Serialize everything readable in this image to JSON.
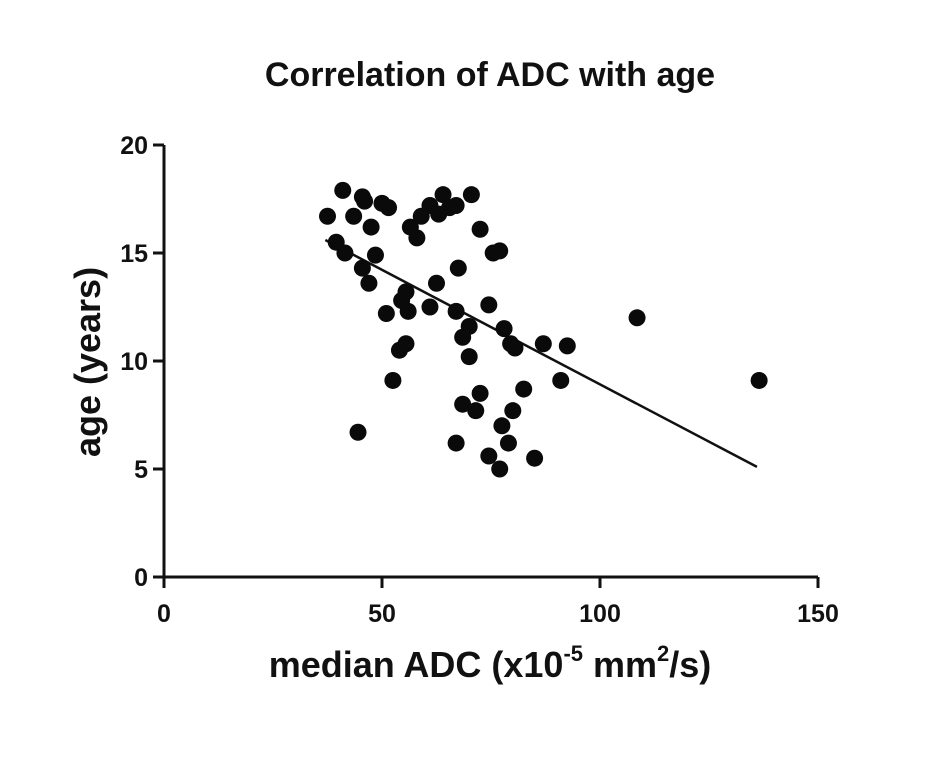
{
  "chart_data": {
    "type": "scatter",
    "title": "Correlation of ADC with age",
    "xlabel_main": "median ADC (x10",
    "xlabel_exp1": "-5",
    "xlabel_mid": " mm",
    "xlabel_exp2": "2",
    "xlabel_tail": "/s)",
    "ylabel": "age (years)",
    "xlim": [
      0,
      150
    ],
    "ylim": [
      0,
      20
    ],
    "x_ticks": [
      "0",
      "50",
      "100",
      "150"
    ],
    "y_ticks": [
      "0",
      "5",
      "10",
      "15",
      "20"
    ],
    "grid": false,
    "trendline": {
      "x": [
        37,
        136
      ],
      "y": [
        15.6,
        5.1
      ]
    },
    "points": [
      {
        "x": 37.5,
        "y": 16.7
      },
      {
        "x": 41,
        "y": 17.9
      },
      {
        "x": 43.5,
        "y": 16.7
      },
      {
        "x": 45.5,
        "y": 17.6
      },
      {
        "x": 46,
        "y": 17.4
      },
      {
        "x": 47.5,
        "y": 16.2
      },
      {
        "x": 50,
        "y": 17.3
      },
      {
        "x": 51.5,
        "y": 17.1
      },
      {
        "x": 39.5,
        "y": 15.5
      },
      {
        "x": 41.5,
        "y": 15.0
      },
      {
        "x": 45.5,
        "y": 14.3
      },
      {
        "x": 47,
        "y": 13.6
      },
      {
        "x": 48.5,
        "y": 14.9
      },
      {
        "x": 51,
        "y": 12.2
      },
      {
        "x": 54.5,
        "y": 12.8
      },
      {
        "x": 55.5,
        "y": 13.2
      },
      {
        "x": 56,
        "y": 12.3
      },
      {
        "x": 54,
        "y": 10.5
      },
      {
        "x": 55.5,
        "y": 10.8
      },
      {
        "x": 52.5,
        "y": 9.1
      },
      {
        "x": 44.5,
        "y": 6.7
      },
      {
        "x": 56.5,
        "y": 16.2
      },
      {
        "x": 58,
        "y": 15.7
      },
      {
        "x": 59,
        "y": 16.7
      },
      {
        "x": 61,
        "y": 17.2
      },
      {
        "x": 63,
        "y": 16.8
      },
      {
        "x": 64,
        "y": 17.7
      },
      {
        "x": 65.5,
        "y": 17.1
      },
      {
        "x": 67,
        "y": 17.2
      },
      {
        "x": 70.5,
        "y": 17.7
      },
      {
        "x": 72.5,
        "y": 16.1
      },
      {
        "x": 75.5,
        "y": 15.0
      },
      {
        "x": 77,
        "y": 15.1
      },
      {
        "x": 61,
        "y": 12.5
      },
      {
        "x": 62.5,
        "y": 13.6
      },
      {
        "x": 67.5,
        "y": 14.3
      },
      {
        "x": 67,
        "y": 12.3
      },
      {
        "x": 68.5,
        "y": 11.1
      },
      {
        "x": 70,
        "y": 11.6
      },
      {
        "x": 70,
        "y": 10.2
      },
      {
        "x": 74.5,
        "y": 12.6
      },
      {
        "x": 78,
        "y": 11.5
      },
      {
        "x": 79.5,
        "y": 10.8
      },
      {
        "x": 80.5,
        "y": 10.6
      },
      {
        "x": 87,
        "y": 10.8
      },
      {
        "x": 92.5,
        "y": 10.7
      },
      {
        "x": 91,
        "y": 9.1
      },
      {
        "x": 82.5,
        "y": 8.7
      },
      {
        "x": 72.5,
        "y": 8.5
      },
      {
        "x": 68.5,
        "y": 8.0
      },
      {
        "x": 71.5,
        "y": 7.7
      },
      {
        "x": 80,
        "y": 7.7
      },
      {
        "x": 77.5,
        "y": 7.0
      },
      {
        "x": 79,
        "y": 6.2
      },
      {
        "x": 67,
        "y": 6.2
      },
      {
        "x": 74.5,
        "y": 5.6
      },
      {
        "x": 77,
        "y": 5.0
      },
      {
        "x": 85,
        "y": 5.5
      },
      {
        "x": 108.5,
        "y": 12.0
      },
      {
        "x": 136.5,
        "y": 9.1
      }
    ]
  }
}
